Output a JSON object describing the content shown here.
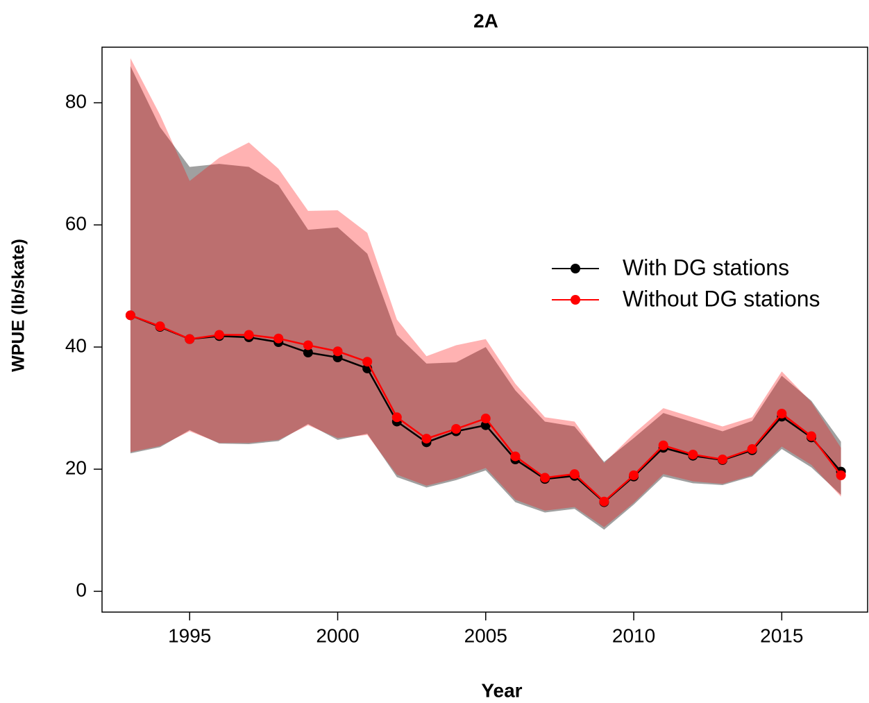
{
  "chart_data": {
    "type": "line",
    "title": "2A",
    "x_label": "Year",
    "y_label": "WPUE (lb/skate)",
    "x": [
      1993,
      1994,
      1995,
      1996,
      1997,
      1998,
      1999,
      2000,
      2001,
      2002,
      2003,
      2004,
      2005,
      2006,
      2007,
      2008,
      2009,
      2010,
      2011,
      2012,
      2013,
      2014,
      2015,
      2016,
      2017
    ],
    "xlim": [
      1992.04,
      2017.9
    ],
    "xticks": [
      1995,
      2000,
      2005,
      2010,
      2015
    ],
    "ylim": [
      -3.4,
      89.1
    ],
    "yticks": [
      0,
      20,
      40,
      60,
      80
    ],
    "legend": "right",
    "series": [
      {
        "name": "With DG stations",
        "color": "#000000",
        "band_color": "#a0a0a0",
        "band_opacity": 1,
        "values": [
          45.2,
          43.3,
          41.3,
          41.8,
          41.6,
          40.8,
          39.1,
          38.3,
          36.5,
          27.8,
          24.4,
          26.2,
          27.2,
          21.6,
          18.4,
          18.9,
          14.6,
          18.8,
          23.5,
          22.2,
          21.5,
          23.1,
          28.6,
          25.2,
          19.6
        ],
        "lower": [
          22.6,
          23.6,
          26.4,
          24.2,
          24.1,
          24.6,
          27.4,
          24.8,
          25.8,
          18.7,
          17.0,
          18.2,
          19.8,
          14.6,
          12.9,
          13.5,
          10.1,
          14.2,
          18.8,
          17.7,
          17.4,
          18.8,
          23.3,
          20.3,
          15.8
        ],
        "upper": [
          86.0,
          76.0,
          69.5,
          70.0,
          69.5,
          66.5,
          59.2,
          59.6,
          55.3,
          42.0,
          37.3,
          37.5,
          40.0,
          32.9,
          27.8,
          27.0,
          21.2,
          25.1,
          29.2,
          27.7,
          26.2,
          27.9,
          35.3,
          31.2,
          24.5
        ]
      },
      {
        "name": "Without DG stations",
        "color": "#ff0000",
        "band_color": "#ff0000",
        "band_opacity": 0.3,
        "values": [
          45.2,
          43.4,
          41.3,
          42.0,
          42.0,
          41.4,
          40.3,
          39.3,
          37.6,
          28.5,
          25.0,
          26.6,
          28.3,
          22.1,
          18.6,
          19.2,
          14.7,
          19.0,
          23.9,
          22.4,
          21.6,
          23.3,
          29.1,
          25.4,
          19.0
        ],
        "lower": [
          22.8,
          23.8,
          26.2,
          24.3,
          24.3,
          24.8,
          27.2,
          25.1,
          25.6,
          19.1,
          17.3,
          18.5,
          20.2,
          15.0,
          13.2,
          13.8,
          10.5,
          14.5,
          19.2,
          18.0,
          17.6,
          19.0,
          23.7,
          20.7,
          15.5
        ],
        "upper": [
          87.3,
          78.0,
          67.2,
          71.0,
          73.5,
          69.2,
          62.3,
          62.4,
          58.7,
          44.5,
          38.5,
          40.3,
          41.3,
          34.0,
          28.5,
          27.8,
          21.0,
          25.8,
          30.0,
          28.5,
          27.0,
          28.5,
          36.0,
          31.0,
          23.5
        ]
      }
    ]
  }
}
